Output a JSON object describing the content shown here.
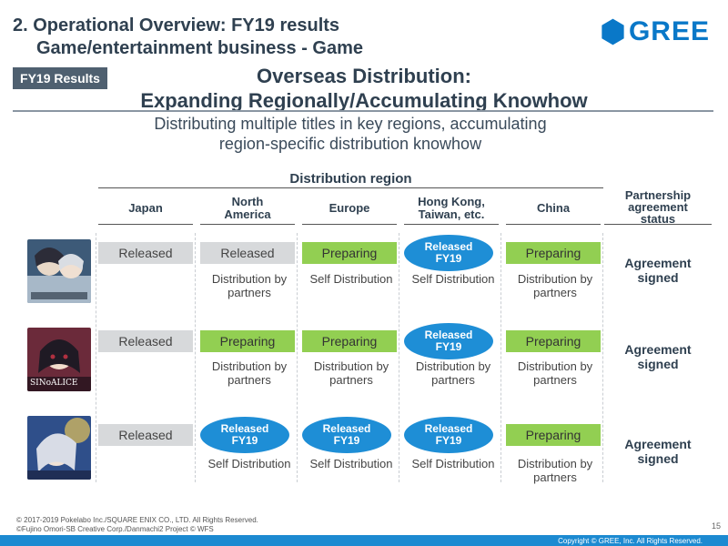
{
  "header": {
    "section_line1": "2. Operational Overview: FY19 results",
    "section_line2": "Game/entertainment business - Game",
    "logo_text": "GREE",
    "badge": "FY19 Results",
    "title_line1": "Overseas Distribution:",
    "title_line2": "Expanding Regionally/Accumulating Knowhow",
    "subtitle_line1": "Distributing multiple titles in key regions, accumulating",
    "subtitle_line2": "region-specific distribution knowhow"
  },
  "table": {
    "region_header": "Distribution region",
    "columns": [
      "Japan",
      "North America",
      "Europe",
      "Hong Kong, Taiwan, etc.",
      "China"
    ],
    "column_lines": [
      [
        "Japan"
      ],
      [
        "North",
        "America"
      ],
      [
        "Europe"
      ],
      [
        "Hong Kong,",
        "Taiwan, etc."
      ],
      [
        "China"
      ]
    ],
    "partnership_header": [
      "Partnership",
      "agreement",
      "status"
    ],
    "rows": [
      {
        "game": "game-1",
        "statuses": [
          {
            "type": "released",
            "lines": [
              "Released"
            ]
          },
          {
            "type": "released",
            "lines": [
              "Released"
            ]
          },
          {
            "type": "preparing",
            "lines": [
              "Preparing"
            ]
          },
          {
            "type": "oval",
            "lines": [
              "Released",
              "FY19"
            ]
          },
          {
            "type": "preparing",
            "lines": [
              "Preparing"
            ]
          }
        ],
        "methods": [
          [],
          [
            "Distribution by",
            "partners"
          ],
          [
            "Self Distribution"
          ],
          [
            "Self Distribution"
          ],
          [
            "Distribution by",
            "partners"
          ]
        ],
        "agreement": [
          "Agreement",
          "signed"
        ]
      },
      {
        "game": "game-2",
        "statuses": [
          {
            "type": "released",
            "lines": [
              "Released"
            ]
          },
          {
            "type": "preparing",
            "lines": [
              "Preparing"
            ]
          },
          {
            "type": "preparing",
            "lines": [
              "Preparing"
            ]
          },
          {
            "type": "oval",
            "lines": [
              "Released",
              "FY19"
            ]
          },
          {
            "type": "preparing",
            "lines": [
              "Preparing"
            ]
          }
        ],
        "methods": [
          [],
          [
            "Distribution by",
            "partners"
          ],
          [
            "Distribution by",
            "partners"
          ],
          [
            "Distribution by",
            "partners"
          ],
          [
            "Distribution by",
            "partners"
          ]
        ],
        "agreement": [
          "Agreement",
          "signed"
        ]
      },
      {
        "game": "game-3",
        "statuses": [
          {
            "type": "released",
            "lines": [
              "Released"
            ]
          },
          {
            "type": "oval",
            "lines": [
              "Released",
              "FY19"
            ]
          },
          {
            "type": "oval",
            "lines": [
              "Released",
              "FY19"
            ]
          },
          {
            "type": "oval",
            "lines": [
              "Released",
              "FY19"
            ]
          },
          {
            "type": "preparing",
            "lines": [
              "Preparing"
            ]
          }
        ],
        "methods": [
          [],
          [
            "Self Distribution"
          ],
          [
            "Self  Distribution"
          ],
          [
            "Self Distribution"
          ],
          [
            "Distribution by",
            "partners"
          ]
        ],
        "agreement": [
          "Agreement",
          "signed"
        ]
      }
    ],
    "thumb_captions": [
      "",
      "SINoALICE",
      ""
    ]
  },
  "footer": {
    "credit1": "© 2017-2019 Pokelabo Inc./SQUARE ENIX CO., LTD. All Rights Reserved.",
    "credit2": "©Fujino Omori-SB Creative Corp./Danmachi2 Project © WFS",
    "page": "15",
    "copyright": "Copyright © GREE, Inc. All Rights Reserved."
  },
  "colors": {
    "accent": "#1c8ad1",
    "released_gray": "#d7d9db",
    "preparing_green": "#92cf52",
    "oval_blue": "#1e8ed6"
  }
}
